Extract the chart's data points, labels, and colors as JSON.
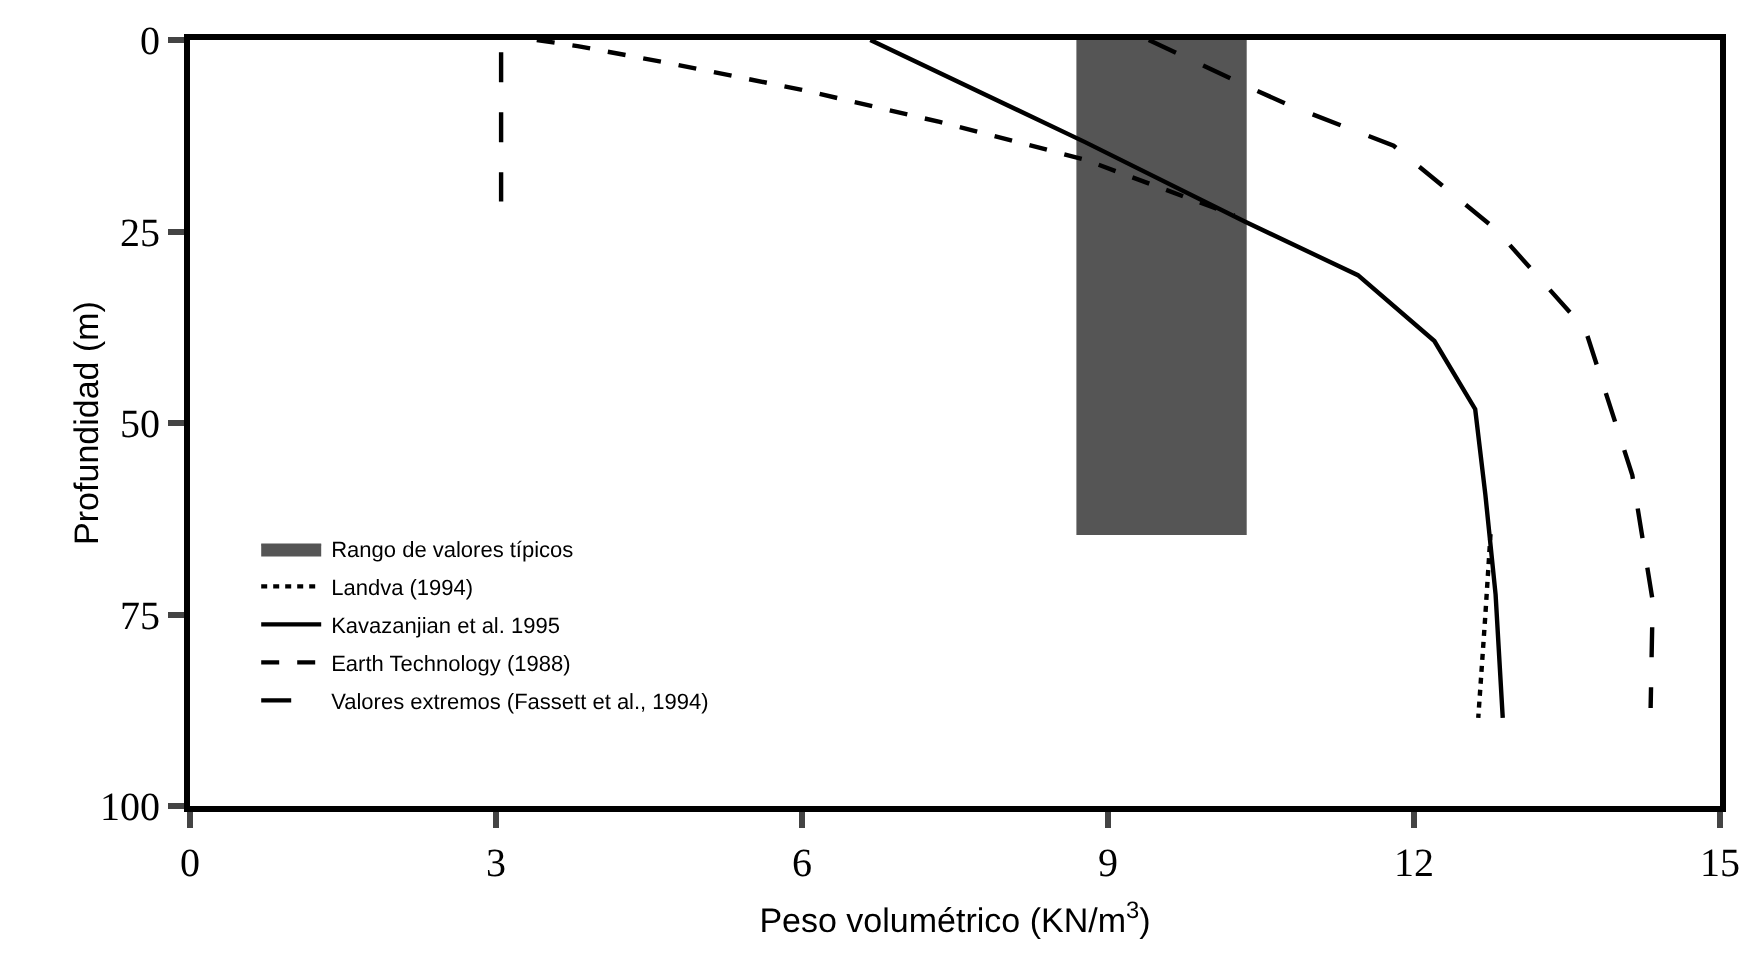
{
  "chart_data": {
    "type": "line",
    "xlabel": "Peso volumétrico (KN/m$^{3}$)",
    "ylabel": "Profundidad (m)",
    "xlim": [
      0,
      15
    ],
    "xticks": [
      0,
      3,
      6,
      9,
      12,
      15
    ],
    "ylim": [
      100,
      0
    ],
    "yticks": [
      0,
      25,
      50,
      75,
      100
    ],
    "grid": false,
    "legend": "bottom left",
    "marker": "none",
    "series": [
      {
        "name": "Landva (1994)",
        "color": "#000000",
        "line_style": "dotted",
        "x": [
          12.75,
          12.7,
          12.63
        ],
        "values": [
          64.5,
          75,
          88.5
        ]
      },
      {
        "name": "Kavazanjian et al. 1995",
        "color": "#000000",
        "line_style": "solid",
        "x": [
          6.67,
          8.77,
          10.34,
          11.45,
          12.2,
          12.6,
          12.7,
          12.8,
          12.87
        ],
        "values": [
          0,
          13.3,
          23.7,
          30.7,
          39.3,
          48.2,
          59.4,
          72.4,
          88.5
        ]
      },
      {
        "name": "Earth Technology (1988)",
        "color": "#000000",
        "line_style": "dashed",
        "x": [
          3.4,
          3.8,
          4.65,
          6.0,
          7.35,
          8.77,
          10.24
        ],
        "values": [
          0,
          0.8,
          2.9,
          6.5,
          10.7,
          15.6,
          22.9
        ]
      },
      {
        "name": "Valores extremos (Fassett et al., 1994)",
        "color": "#000000",
        "line_style": "long_dashed",
        "x": [
          3.05,
          3.05,
          null,
          9.4,
          10.44,
          10.79,
          11.8,
          12.8,
          13.68,
          14.14,
          14.34,
          14.32
        ],
        "values": [
          1.6,
          21.1,
          null,
          0,
          6.5,
          8.6,
          13.8,
          24.7,
          37.8,
          56.8,
          73.2,
          87.2
        ]
      },
      {
        "name": "Rango de valores típicos",
        "type": "area",
        "color": "#555555",
        "x": [
          8.7,
          8.7,
          10.35,
          10.35
        ],
        "values": [
          0,
          64.5,
          64.5,
          0
        ]
      }
    ]
  }
}
